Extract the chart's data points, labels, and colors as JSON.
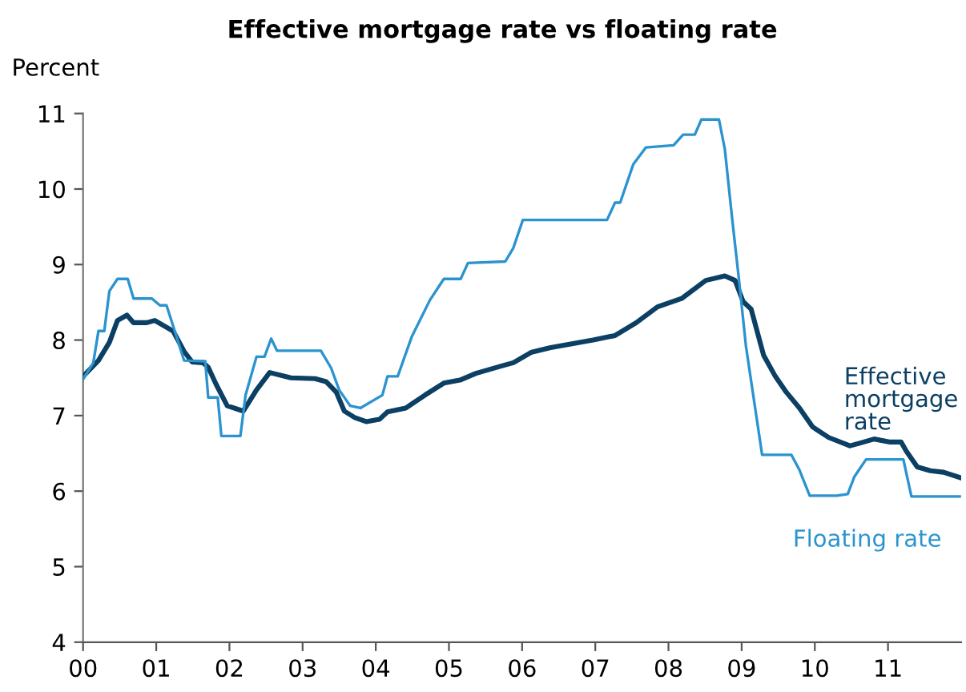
{
  "chart_data": {
    "type": "line",
    "title": "Effective mortgage rate vs floating rate",
    "ylabel": "Percent",
    "xlim": [
      2000,
      2012
    ],
    "xticks": [
      {
        "value": 2000,
        "label": "00"
      },
      {
        "value": 2001,
        "label": "01"
      },
      {
        "value": 2002,
        "label": "02"
      },
      {
        "value": 2003,
        "label": "03"
      },
      {
        "value": 2004,
        "label": "04"
      },
      {
        "value": 2005,
        "label": "05"
      },
      {
        "value": 2006,
        "label": "06"
      },
      {
        "value": 2007,
        "label": "07"
      },
      {
        "value": 2008,
        "label": "08"
      },
      {
        "value": 2009,
        "label": "09"
      },
      {
        "value": 2010,
        "label": "10"
      },
      {
        "value": 2011,
        "label": "11"
      }
    ],
    "ylim": [
      4,
      11
    ],
    "yticks": [
      4,
      5,
      6,
      7,
      8,
      9,
      10,
      11
    ],
    "grid": false,
    "legend": false,
    "marker": "none",
    "series": [
      {
        "name": "Floating rate",
        "color": "#2a93d0",
        "x": [
          2000.0,
          2000.14,
          2000.21,
          2000.29,
          2000.36,
          2000.47,
          2000.61,
          2000.69,
          2000.94,
          2001.05,
          2001.14,
          2001.23,
          2001.38,
          2001.67,
          2001.71,
          2001.84,
          2001.89,
          2002.15,
          2002.22,
          2002.37,
          2002.48,
          2002.57,
          2002.65,
          2003.25,
          2003.39,
          2003.5,
          2003.65,
          2003.79,
          2004.09,
          2004.16,
          2004.3,
          2004.49,
          2004.74,
          2004.93,
          2005.16,
          2005.26,
          2005.77,
          2005.88,
          2006.01,
          2007.16,
          2007.27,
          2007.34,
          2007.52,
          2007.69,
          2008.07,
          2008.2,
          2008.36,
          2008.45,
          2008.69,
          2008.77,
          2008.87,
          2008.96,
          2009.06,
          2009.28,
          2009.68,
          2009.79,
          2009.93,
          2010.3,
          2010.45,
          2010.54,
          2010.7,
          2011.21,
          2011.32,
          2011.98
        ],
        "values": [
          7.48,
          7.7,
          8.12,
          8.12,
          8.65,
          8.81,
          8.81,
          8.55,
          8.55,
          8.46,
          8.46,
          8.19,
          7.73,
          7.72,
          7.24,
          7.24,
          6.73,
          6.73,
          7.27,
          7.78,
          7.78,
          8.02,
          7.86,
          7.86,
          7.63,
          7.34,
          7.13,
          7.1,
          7.27,
          7.52,
          7.52,
          8.04,
          8.53,
          8.81,
          8.81,
          9.02,
          9.04,
          9.22,
          9.59,
          9.59,
          9.82,
          9.82,
          10.33,
          10.55,
          10.58,
          10.72,
          10.72,
          10.92,
          10.92,
          10.53,
          9.61,
          8.83,
          7.91,
          6.48,
          6.48,
          6.28,
          5.94,
          5.94,
          5.96,
          6.19,
          6.42,
          6.42,
          5.93,
          5.93
        ]
      },
      {
        "name": "Effective mortgage rate",
        "color": "#0b3f63",
        "x": [
          2000.0,
          2000.21,
          2000.36,
          2000.47,
          2000.6,
          2000.69,
          2000.87,
          2000.98,
          2001.23,
          2001.38,
          2001.49,
          2001.64,
          2001.71,
          2001.82,
          2001.97,
          2002.19,
          2002.37,
          2002.55,
          2002.84,
          2003.17,
          2003.32,
          2003.46,
          2003.57,
          2003.72,
          2003.87,
          2004.05,
          2004.16,
          2004.41,
          2004.67,
          2004.93,
          2005.15,
          2005.37,
          2005.73,
          2005.88,
          2006.13,
          2006.39,
          2006.68,
          2006.97,
          2007.27,
          2007.56,
          2007.85,
          2008.18,
          2008.51,
          2008.77,
          2008.91,
          2009.02,
          2009.13,
          2009.3,
          2009.46,
          2009.61,
          2009.79,
          2009.97,
          2010.19,
          2010.48,
          2010.63,
          2010.81,
          2011.03,
          2011.18,
          2011.25,
          2011.4,
          2011.58,
          2011.76,
          2011.98
        ],
        "values": [
          7.52,
          7.73,
          7.97,
          8.26,
          8.33,
          8.23,
          8.23,
          8.26,
          8.12,
          7.85,
          7.71,
          7.7,
          7.64,
          7.41,
          7.13,
          7.06,
          7.34,
          7.57,
          7.5,
          7.49,
          7.45,
          7.31,
          7.06,
          6.97,
          6.92,
          6.95,
          7.05,
          7.1,
          7.27,
          7.43,
          7.47,
          7.56,
          7.66,
          7.7,
          7.84,
          7.9,
          7.95,
          8.0,
          8.06,
          8.23,
          8.44,
          8.55,
          8.79,
          8.85,
          8.79,
          8.51,
          8.41,
          7.8,
          7.52,
          7.31,
          7.1,
          6.85,
          6.71,
          6.6,
          6.64,
          6.69,
          6.65,
          6.65,
          6.53,
          6.32,
          6.27,
          6.25,
          6.18
        ]
      }
    ]
  }
}
